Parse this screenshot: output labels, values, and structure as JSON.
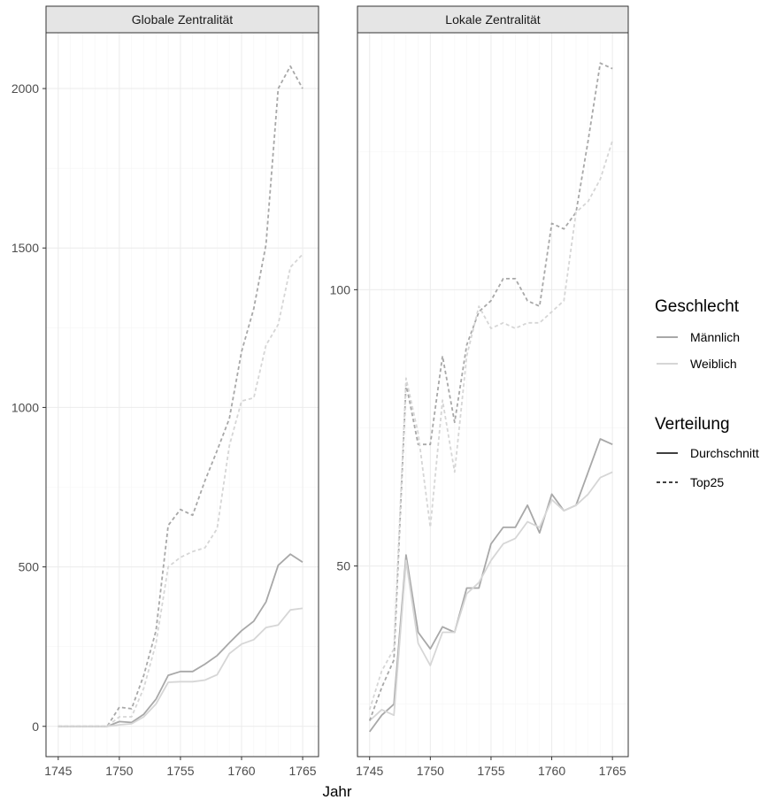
{
  "chart_data": {
    "type": "line",
    "xlabel": "Jahr",
    "ylabel": "",
    "x": [
      1745,
      1746,
      1747,
      1748,
      1749,
      1750,
      1751,
      1752,
      1753,
      1754,
      1755,
      1756,
      1757,
      1758,
      1759,
      1760,
      1761,
      1762,
      1763,
      1764,
      1765
    ],
    "x_ticks": [
      1745,
      1750,
      1755,
      1760,
      1765
    ],
    "x_tick_labels": [
      "1745",
      "1750",
      "1755",
      "1760",
      "1765"
    ],
    "panels": [
      {
        "title": "Globale Zentralität",
        "xlim": [
          1744,
          1766.3
        ],
        "ylim": [
          -95,
          2175
        ],
        "y_ticks": [
          0,
          500,
          1000,
          1500,
          2000
        ],
        "y_tick_labels": [
          "0",
          "500",
          "1000",
          "1500",
          "2000"
        ],
        "series": [
          {
            "geschlecht": "Männlich",
            "verteilung": "Durchschnitt",
            "values": [
              0,
              0,
              0,
              0,
              0,
              15,
              12,
              38,
              85,
              160,
              172,
              172,
              195,
              222,
              262,
              300,
              330,
              390,
              505,
              540,
              515
            ]
          },
          {
            "geschlecht": "Weiblich",
            "verteilung": "Durchschnitt",
            "values": [
              0,
              0,
              0,
              0,
              0,
              5,
              8,
              30,
              70,
              138,
              140,
              140,
              145,
              162,
              228,
              258,
              272,
              310,
              318,
              365,
              370
            ]
          },
          {
            "geschlecht": "Männlich",
            "verteilung": "Top25",
            "values": [
              0,
              0,
              0,
              0,
              0,
              60,
              55,
              160,
              300,
              630,
              680,
              662,
              770,
              865,
              965,
              1175,
              1310,
              1510,
              2000,
              2070,
              2000
            ]
          },
          {
            "geschlecht": "Weiblich",
            "verteilung": "Top25",
            "values": [
              0,
              0,
              0,
              0,
              0,
              30,
              30,
              120,
              260,
              500,
              530,
              548,
              560,
              620,
              880,
              1020,
              1030,
              1195,
              1260,
              1440,
              1480
            ]
          }
        ]
      },
      {
        "title": "Lokale Zentralität",
        "xlim": [
          1744,
          1766.3
        ],
        "ylim": [
          15.5,
          146.5
        ],
        "y_ticks": [
          50,
          100
        ],
        "y_tick_labels": [
          "50",
          "100"
        ],
        "series": [
          {
            "geschlecht": "Männlich",
            "verteilung": "Durchschnitt",
            "values": [
              20,
              23,
              25,
              52,
              38,
              35,
              39,
              38,
              46,
              46,
              54,
              57,
              57,
              61,
              56,
              63,
              60,
              61,
              67,
              73,
              72
            ]
          },
          {
            "geschlecht": "Weiblich",
            "verteilung": "Durchschnitt",
            "values": [
              22,
              24,
              23,
              51,
              36,
              32,
              38,
              38,
              45,
              47,
              51,
              54,
              55,
              58,
              57,
              62,
              60,
              61,
              63,
              66,
              67
            ]
          },
          {
            "geschlecht": "Männlich",
            "verteilung": "Top25",
            "values": [
              22,
              28,
              33,
              83,
              72,
              72,
              88,
              76,
              90,
              96,
              98,
              102,
              102,
              98,
              97,
              112,
              111,
              114,
              127,
              141,
              140
            ]
          },
          {
            "geschlecht": "Weiblich",
            "verteilung": "Top25",
            "values": [
              24,
              31,
              35,
              84,
              74,
              57,
              80,
              67,
              88,
              97,
              93,
              94,
              93,
              94,
              94,
              96,
              98,
              114,
              116,
              120,
              127
            ]
          }
        ]
      }
    ],
    "legend": {
      "placement": "right",
      "groups": [
        {
          "title": "Geschlecht",
          "items": [
            {
              "label": "Männlich",
              "color": "#a8a8a8",
              "dash": "solid"
            },
            {
              "label": "Weiblich",
              "color": "#d6d6d6",
              "dash": "solid"
            }
          ]
        },
        {
          "title": "Verteilung",
          "items": [
            {
              "label": "Durchschnitt",
              "color": "#000000",
              "dash": "solid"
            },
            {
              "label": "Top25",
              "color": "#000000",
              "dash": "dashed"
            }
          ]
        }
      ]
    },
    "colors": {
      "Männlich": "#a8a8a8",
      "Weiblich": "#d6d6d6",
      "strip_fill": "#e5e5e5",
      "grid_major": "#ebebeb",
      "grid_minor": "#f5f5f5",
      "border": "#333333"
    },
    "grid": true
  }
}
